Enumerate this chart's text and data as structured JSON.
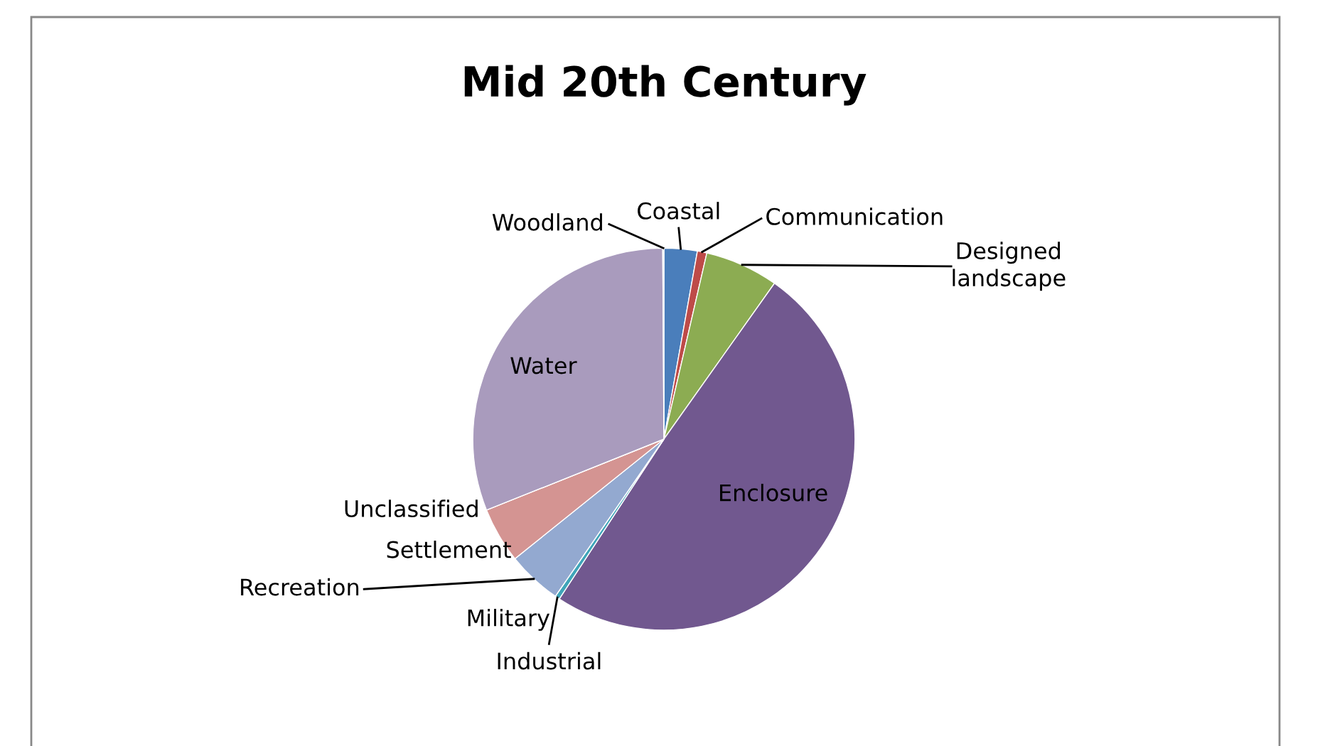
{
  "chart_data": {
    "type": "pie",
    "title": "Mid 20th Century",
    "categories": [
      "Coastal",
      "Communication",
      "Designed\nlandscape",
      "Enclosure",
      "Industrial",
      "Military",
      "Recreation",
      "Settlement",
      "Unclassified",
      "Water",
      "Woodland"
    ],
    "values": [
      2.8,
      0.8,
      6.2,
      49.3,
      0.4,
      null,
      4.6,
      4.7,
      null,
      30.9,
      0.1
    ],
    "colors": [
      "#4a7ebb",
      "#be4b48",
      "#8cac52",
      "#71588f",
      "#3fa5b9",
      "#f79646",
      "#93a9d0",
      "#d49492",
      "#c3d69b",
      "#a99bbd",
      "#b9cde5"
    ],
    "legend": false
  }
}
